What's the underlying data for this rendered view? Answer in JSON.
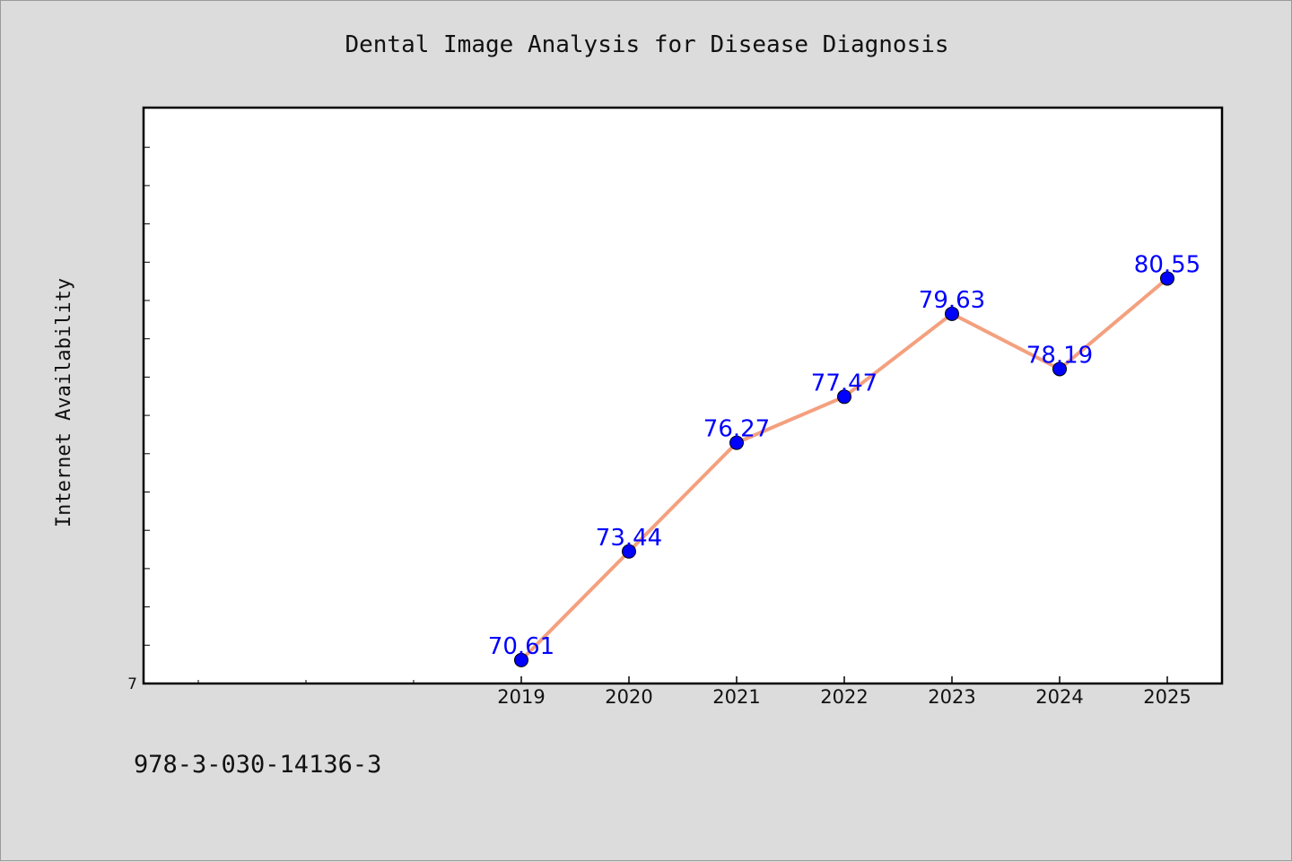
{
  "chart_data": {
    "type": "line",
    "title": "Dental Image Analysis for Disease Diagnosis",
    "xlabel": "",
    "ylabel": "Internet Availability",
    "x": [
      "2019",
      "2020",
      "2021",
      "2022",
      "2023",
      "2024",
      "2025"
    ],
    "series": [
      {
        "values": [
          70.61,
          73.44,
          76.27,
          77.47,
          79.63,
          78.19,
          80.55
        ]
      }
    ],
    "data_labels": [
      "70.61",
      "73.44",
      "76.27",
      "77.47",
      "79.63",
      "78.19",
      "80.55"
    ],
    "x_ticks": [
      "2019",
      "2020",
      "2021",
      "2022",
      "2023",
      "2024",
      "2025"
    ],
    "y_tick_labels": [
      "7"
    ],
    "ylim": [
      70,
      85
    ],
    "grid": false,
    "colors": {
      "line": "#f4a07e",
      "marker": "#0000ff",
      "label": "#0000ff",
      "background": "#dcdcdc",
      "plot": "#ffffff"
    }
  },
  "footer_text": "978-3-030-14136-3"
}
